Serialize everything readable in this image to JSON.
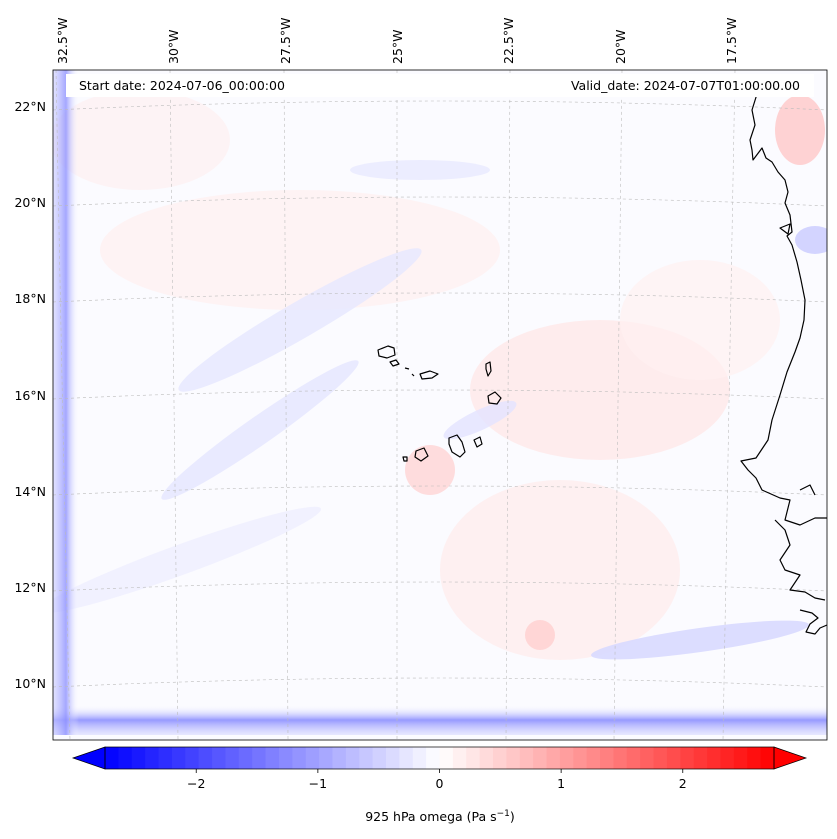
{
  "map": {
    "start_date": "Start date: 2024-07-06_00:00:00",
    "valid_date": "Valid_date: 2024-07-07T01:00:00.00",
    "lon_labels": [
      "32.5°W",
      "30°W",
      "27.5°W",
      "25°W",
      "22.5°W",
      "20°W",
      "17.5°W"
    ],
    "lat_labels": [
      "22°N",
      "20°N",
      "18°N",
      "16°N",
      "14°N",
      "12°N",
      "10°N"
    ],
    "gridlines": true,
    "field": "925 hPa omega",
    "region": "Cape Verde Islands and West African coast"
  },
  "colorbar": {
    "label_prefix": "925 hPa omega (Pa s",
    "label_exp": "−1",
    "label_suffix": ")",
    "ticks": [
      "−2",
      "−1",
      "0",
      "1",
      "2"
    ],
    "tick_values": [
      -2,
      -1,
      0,
      1,
      2
    ],
    "range": [
      -2.75,
      2.75
    ],
    "cmap": "bwr",
    "extend": "both",
    "colors": {
      "low": "#0000ff",
      "mid": "#ffffff",
      "high": "#ff0000"
    }
  }
}
